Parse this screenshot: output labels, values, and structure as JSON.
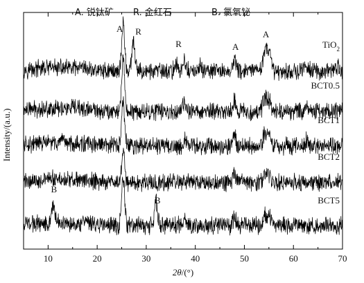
{
  "chart_data": {
    "type": "line",
    "title": "",
    "xlabel": "2θ/(°)",
    "ylabel": "Intensity/(a.u.)",
    "xlim": [
      5,
      70
    ],
    "xticks": [
      10,
      20,
      30,
      40,
      50,
      60,
      70
    ],
    "grid": false,
    "legend": {
      "placement": "top",
      "entries": [
        "A. 锐钛矿",
        "R. 金红石",
        "B. 氯氧铋"
      ]
    },
    "series": [
      {
        "name": "TiO2",
        "label_main": "TiO",
        "label_sub": "2",
        "peaks": [
          {
            "x": 25.3,
            "height": 0.58
          },
          {
            "x": 27.4,
            "height": 0.35
          },
          {
            "x": 36.1,
            "height": 0.1
          },
          {
            "x": 37.8,
            "height": 0.12
          },
          {
            "x": 41.2,
            "height": 0.06
          },
          {
            "x": 48.0,
            "height": 0.15
          },
          {
            "x": 54.2,
            "height": 0.28
          },
          {
            "x": 55.1,
            "height": 0.2
          },
          {
            "x": 62.7,
            "height": 0.08
          },
          {
            "x": 69.0,
            "height": 0.05
          }
        ],
        "annotations": [
          {
            "label": "A",
            "x": 24.6
          },
          {
            "label": "R",
            "x": 28.4
          },
          {
            "label": "R",
            "x": 36.6
          },
          {
            "label": "A",
            "x": 48.2
          },
          {
            "label": "A",
            "x": 54.4
          }
        ]
      },
      {
        "name": "BCT0.5",
        "peaks": [
          {
            "x": 25.3,
            "height": 0.62
          },
          {
            "x": 37.8,
            "height": 0.1
          },
          {
            "x": 48.0,
            "height": 0.14
          },
          {
            "x": 54.2,
            "height": 0.16
          },
          {
            "x": 55.1,
            "height": 0.12
          },
          {
            "x": 62.7,
            "height": 0.07
          }
        ],
        "annotations": []
      },
      {
        "name": "BCT1",
        "peaks": [
          {
            "x": 25.3,
            "height": 0.52
          },
          {
            "x": 37.8,
            "height": 0.08
          },
          {
            "x": 48.0,
            "height": 0.14
          },
          {
            "x": 54.2,
            "height": 0.14
          },
          {
            "x": 55.1,
            "height": 0.12
          },
          {
            "x": 62.7,
            "height": 0.06
          }
        ],
        "annotations": []
      },
      {
        "name": "BCT2",
        "peaks": [
          {
            "x": 25.3,
            "height": 0.4
          },
          {
            "x": 48.0,
            "height": 0.1
          },
          {
            "x": 54.2,
            "height": 0.1
          },
          {
            "x": 55.1,
            "height": 0.08
          }
        ],
        "annotations": []
      },
      {
        "name": "BCT5",
        "peaks": [
          {
            "x": 11.0,
            "height": 0.22
          },
          {
            "x": 25.3,
            "height": 0.58
          },
          {
            "x": 32.0,
            "height": 0.3
          },
          {
            "x": 37.8,
            "height": 0.08
          },
          {
            "x": 48.0,
            "height": 0.1
          },
          {
            "x": 54.2,
            "height": 0.12
          },
          {
            "x": 55.1,
            "height": 0.1
          }
        ],
        "annotations": [
          {
            "label": "B",
            "x": 11.2
          },
          {
            "label": "B",
            "x": 32.3
          }
        ]
      }
    ]
  }
}
